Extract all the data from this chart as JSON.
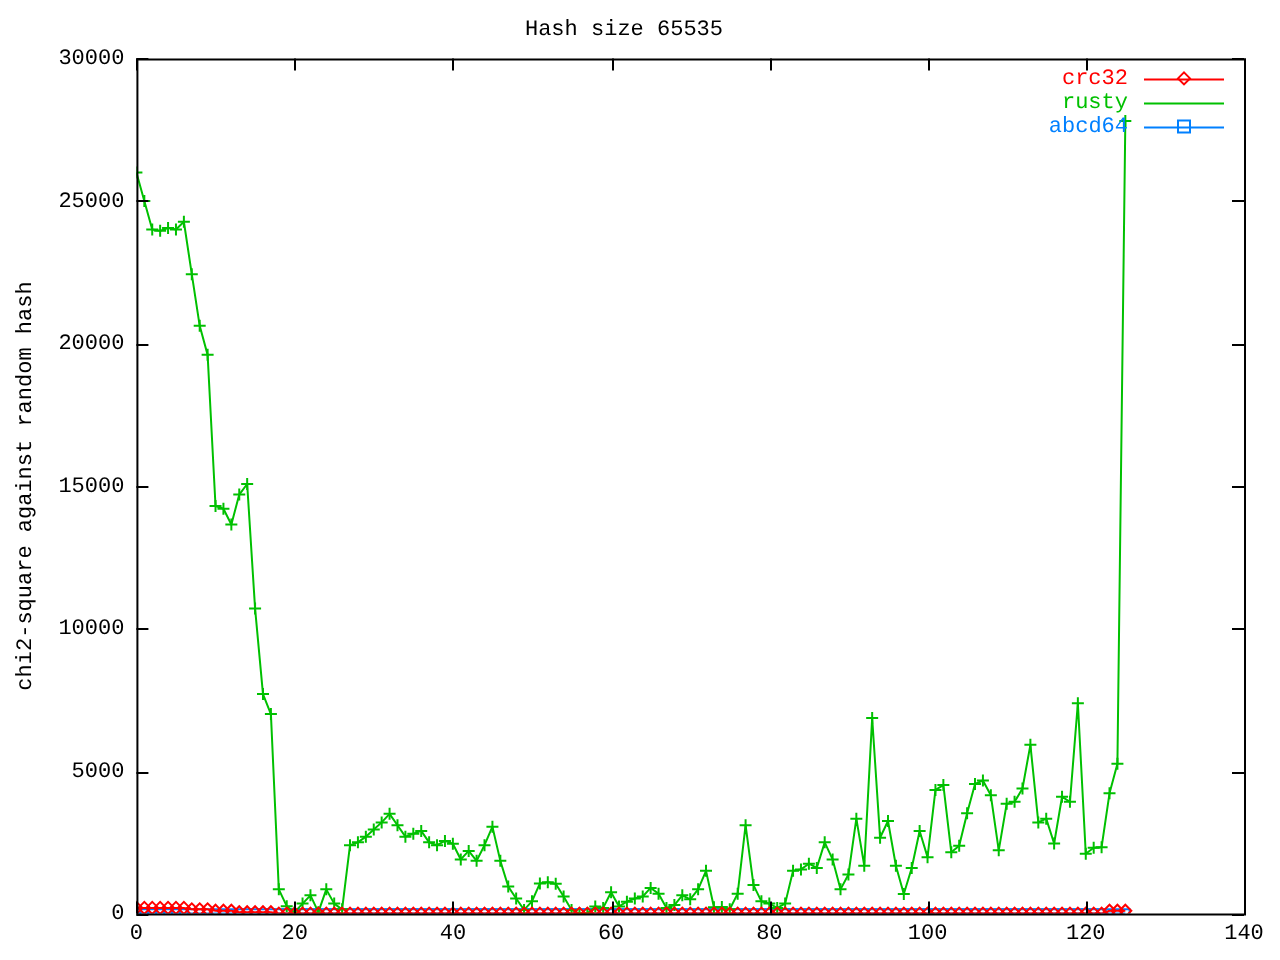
{
  "chart_data": {
    "type": "line",
    "title": "Hash size 65535",
    "ylabel": "chi2-square against random hash",
    "x": [
      0,
      1,
      2,
      3,
      4,
      5,
      6,
      7,
      8,
      9,
      10,
      11,
      12,
      13,
      14,
      15,
      16,
      17,
      18,
      19,
      20,
      21,
      22,
      23,
      24,
      25,
      26,
      27,
      28,
      29,
      30,
      31,
      32,
      33,
      34,
      35,
      36,
      37,
      38,
      39,
      40,
      41,
      42,
      43,
      44,
      45,
      46,
      47,
      48,
      49,
      50,
      51,
      52,
      53,
      54,
      55,
      56,
      57,
      58,
      59,
      60,
      61,
      62,
      63,
      64,
      65,
      66,
      67,
      68,
      69,
      70,
      71,
      72,
      73,
      74,
      75,
      76,
      77,
      78,
      79,
      80,
      81,
      82,
      83,
      84,
      85,
      86,
      87,
      88,
      89,
      90,
      91,
      92,
      93,
      94,
      95,
      96,
      97,
      98,
      99,
      100,
      101,
      102,
      103,
      104,
      105,
      106,
      107,
      108,
      109,
      110,
      111,
      112,
      113,
      114,
      115,
      116,
      117,
      118,
      119,
      120,
      121,
      122,
      123,
      124,
      125
    ],
    "series": [
      {
        "name": "crc32",
        "color": "#ff0000",
        "marker": "diamond",
        "values": [
          200,
          200,
          200,
          200,
          200,
          200,
          200,
          150,
          150,
          150,
          100,
          100,
          100,
          50,
          50,
          50,
          50,
          50,
          0,
          0,
          0,
          0,
          0,
          0,
          0,
          0,
          0,
          0,
          0,
          0,
          0,
          0,
          0,
          0,
          0,
          0,
          0,
          0,
          0,
          0,
          0,
          0,
          0,
          0,
          0,
          0,
          0,
          0,
          0,
          0,
          0,
          0,
          0,
          0,
          0,
          0,
          0,
          0,
          0,
          0,
          0,
          0,
          0,
          0,
          0,
          0,
          0,
          0,
          0,
          0,
          0,
          0,
          0,
          0,
          0,
          0,
          0,
          0,
          0,
          0,
          0,
          0,
          0,
          0,
          0,
          0,
          0,
          0,
          0,
          0,
          0,
          0,
          0,
          0,
          0,
          0,
          0,
          0,
          0,
          0,
          0,
          0,
          0,
          0,
          0,
          0,
          0,
          0,
          0,
          0,
          0,
          0,
          0,
          0,
          0,
          0,
          0,
          0,
          0,
          0,
          0,
          0,
          0,
          100,
          100,
          100
        ]
      },
      {
        "name": "rusty",
        "color": "#00c000",
        "marker": "cross",
        "values": [
          26000,
          25000,
          24000,
          23950,
          24050,
          24000,
          24270,
          22430,
          20620,
          19600,
          14300,
          14200,
          13650,
          14700,
          15070,
          10700,
          7700,
          7000,
          850,
          260,
          50,
          350,
          640,
          50,
          850,
          350,
          150,
          2400,
          2500,
          2700,
          2950,
          3200,
          3500,
          3100,
          2700,
          2800,
          2900,
          2500,
          2400,
          2550,
          2450,
          1900,
          2200,
          1850,
          2400,
          3050,
          1850,
          950,
          530,
          130,
          430,
          1060,
          1100,
          1050,
          600,
          130,
          0,
          0,
          250,
          200,
          750,
          250,
          420,
          530,
          600,
          900,
          700,
          200,
          300,
          640,
          500,
          850,
          1500,
          220,
          230,
          150,
          700,
          3100,
          1000,
          430,
          350,
          200,
          350,
          1500,
          1550,
          1750,
          1600,
          2500,
          1900,
          850,
          1370,
          3330,
          1680,
          6860,
          2660,
          3250,
          1680,
          690,
          1600,
          2900,
          1980,
          4340,
          4510,
          2150,
          2380,
          3520,
          4550,
          4670,
          4150,
          2220,
          3850,
          3920,
          4390,
          5920,
          3200,
          3330,
          2460,
          4100,
          3920,
          7380,
          2100,
          2310,
          2330,
          4220,
          5260,
          27800
        ]
      },
      {
        "name": "abcd64",
        "color": "#0080ff",
        "marker": "square",
        "values": [
          0,
          0,
          0,
          0,
          0,
          0,
          0,
          0,
          0,
          0,
          0,
          0,
          0,
          0,
          0,
          0,
          0,
          0,
          0,
          0,
          0,
          0,
          0,
          0,
          0,
          0,
          0,
          0,
          0,
          0,
          0,
          0,
          0,
          0,
          0,
          0,
          0,
          0,
          0,
          0,
          0,
          0,
          0,
          0,
          0,
          0,
          0,
          0,
          0,
          0,
          0,
          0,
          0,
          0,
          0,
          0,
          0,
          0,
          0,
          0,
          0,
          0,
          0,
          0,
          0,
          0,
          0,
          0,
          0,
          0,
          0,
          0,
          0,
          0,
          0,
          0,
          0,
          0,
          0,
          0,
          0,
          0,
          0,
          0,
          0,
          0,
          0,
          0,
          0,
          0,
          0,
          0,
          0,
          0,
          0,
          0,
          0,
          0,
          0,
          0,
          0,
          0,
          0,
          0,
          0,
          0,
          0,
          0,
          0,
          0,
          0,
          0,
          0,
          0,
          0,
          0,
          0,
          0,
          0,
          0,
          0,
          0,
          0,
          0,
          0,
          0
        ]
      }
    ],
    "xlim": [
      0,
      140
    ],
    "xticks": [
      0,
      20,
      40,
      60,
      80,
      100,
      120,
      140
    ],
    "ylim": [
      0,
      30000
    ],
    "yticks": [
      0,
      5000,
      10000,
      15000,
      20000,
      25000,
      30000
    ],
    "grid": false,
    "legend": "top right"
  }
}
